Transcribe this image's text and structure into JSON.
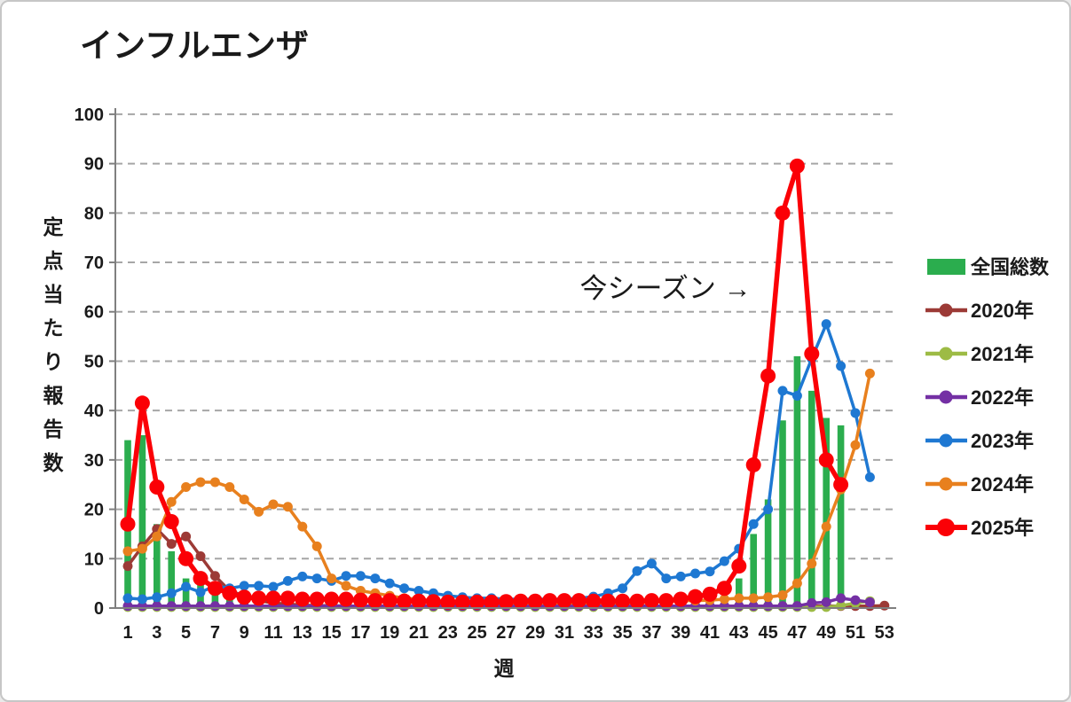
{
  "chart_data": {
    "type": "bar+line",
    "title": "インフルエンザ",
    "ylabel": "定点当たり報告数",
    "xlabel": "週",
    "annotation": "今シーズン →",
    "ylim": [
      0,
      100
    ],
    "y_ticks": [
      0,
      10,
      20,
      30,
      40,
      50,
      60,
      70,
      80,
      90,
      100
    ],
    "x_ticks": [
      1,
      3,
      5,
      7,
      9,
      11,
      13,
      15,
      17,
      19,
      21,
      23,
      25,
      27,
      29,
      31,
      33,
      35,
      37,
      39,
      41,
      43,
      45,
      47,
      49,
      51,
      53
    ],
    "weeks": 53,
    "grid": "horizontal dashed",
    "legend_position": "right",
    "colors": {
      "grid": "#a6a6a6",
      "axis": "#7f7f7f",
      "text": "#1a1a1a"
    },
    "bar_series": {
      "name": "全国総数",
      "color": "#2BAD4E",
      "values": [
        34,
        35,
        17,
        11.5,
        6,
        5,
        3.5,
        2.5,
        1.5,
        null,
        null,
        null,
        null,
        null,
        null,
        null,
        null,
        null,
        null,
        null,
        null,
        null,
        null,
        null,
        null,
        null,
        null,
        null,
        null,
        null,
        null,
        null,
        null,
        null,
        null,
        null,
        null,
        null,
        null,
        null,
        null,
        null,
        6,
        15,
        22,
        38,
        51,
        44,
        38.5,
        37,
        null,
        null,
        null
      ]
    },
    "line_series": [
      {
        "name": "2020年",
        "color": "#9C3A36",
        "emphasis": false,
        "values": [
          8.5,
          12.5,
          16,
          13,
          14.5,
          10.5,
          6.5,
          3.5,
          2.5,
          1.5,
          1,
          0.8,
          0.6,
          0.5,
          0.5,
          0.4,
          0.4,
          0.4,
          0.4,
          0.4,
          0.4,
          0.4,
          0.4,
          0.4,
          0.4,
          0.4,
          0.4,
          0.4,
          0.4,
          0.4,
          0.4,
          0.4,
          0.4,
          0.4,
          0.4,
          0.4,
          0.4,
          0.4,
          0.4,
          0.4,
          0.4,
          0.4,
          0.4,
          0.4,
          0.4,
          0.4,
          0.4,
          0.4,
          0.4,
          0.4,
          0.4,
          0.4,
          0.5
        ]
      },
      {
        "name": "2021年",
        "color": "#9DBB45",
        "emphasis": false,
        "values": [
          0.2,
          0.2,
          0.2,
          0.2,
          0.2,
          0.2,
          0.2,
          0.2,
          0.2,
          0.2,
          0.2,
          0.2,
          0.2,
          0.2,
          0.2,
          0.2,
          0.2,
          0.2,
          0.2,
          0.2,
          0.2,
          0.2,
          0.2,
          0.2,
          0.2,
          0.2,
          0.2,
          0.2,
          0.2,
          0.2,
          0.2,
          0.2,
          0.2,
          0.2,
          0.2,
          0.2,
          0.2,
          0.2,
          0.2,
          0.2,
          0.2,
          0.2,
          0.2,
          0.2,
          0.2,
          0.2,
          0.2,
          0.2,
          0.2,
          0.5,
          1,
          1.4,
          null
        ]
      },
      {
        "name": "2022年",
        "color": "#7430A4",
        "emphasis": false,
        "values": [
          0.4,
          0.4,
          0.4,
          0.4,
          0.4,
          0.4,
          0.4,
          0.4,
          0.4,
          0.4,
          0.4,
          0.4,
          0.4,
          0.4,
          0.4,
          0.4,
          0.4,
          0.4,
          0.4,
          0.4,
          0.4,
          0.4,
          0.4,
          0.4,
          0.4,
          0.4,
          0.4,
          0.4,
          0.4,
          0.4,
          0.4,
          0.4,
          0.4,
          0.4,
          0.4,
          0.4,
          0.4,
          0.4,
          0.4,
          0.4,
          0.4,
          0.4,
          0.4,
          0.4,
          0.4,
          0.4,
          0.4,
          1,
          1.2,
          2,
          1.6,
          1.2,
          null
        ]
      },
      {
        "name": "2023年",
        "color": "#1E78D2",
        "emphasis": false,
        "values": [
          2,
          1.8,
          2.2,
          3,
          4.3,
          3.2,
          4.5,
          4,
          4.5,
          4.5,
          4.3,
          5.5,
          6.4,
          6,
          5.5,
          6.5,
          6.5,
          6,
          5,
          4,
          3.5,
          3,
          2.5,
          2.2,
          2,
          2,
          1.8,
          1.8,
          1.8,
          1.8,
          1.8,
          2,
          2.3,
          3,
          4,
          7.5,
          9,
          6,
          6.4,
          7,
          7.4,
          9.5,
          12,
          17,
          20,
          44,
          43,
          50.5,
          57.5,
          49,
          39.5,
          26.5,
          null
        ]
      },
      {
        "name": "2024年",
        "color": "#E8801E",
        "emphasis": false,
        "values": [
          11.5,
          12,
          14.5,
          21.5,
          24.5,
          25.5,
          25.5,
          24.5,
          22,
          19.5,
          21,
          20.5,
          16.5,
          12.5,
          6,
          4.5,
          3.5,
          3,
          2.5,
          2,
          1.8,
          1.5,
          1.2,
          1,
          1,
          1,
          1,
          1,
          1,
          1,
          1,
          1,
          1,
          1,
          1,
          1,
          1.2,
          1.3,
          1.5,
          1.5,
          1.6,
          1.8,
          2,
          2,
          2.2,
          2.6,
          5,
          9,
          16.5,
          24,
          33,
          47.5,
          null
        ]
      },
      {
        "name": "2025年",
        "color": "#FB0006",
        "emphasis": true,
        "values": [
          17,
          41.5,
          24.5,
          17.5,
          10,
          6,
          4,
          3,
          2.2,
          2,
          2,
          2,
          1.8,
          1.8,
          1.8,
          1.8,
          1.6,
          1.5,
          1.5,
          1.4,
          1.4,
          1.3,
          1.2,
          1.2,
          1.2,
          1.2,
          1.3,
          1.4,
          1.4,
          1.5,
          1.5,
          1.5,
          1.4,
          1.4,
          1.4,
          1.4,
          1.5,
          1.5,
          1.8,
          2.3,
          2.8,
          4,
          8.5,
          29,
          47,
          80,
          89.5,
          51.5,
          30,
          25,
          null,
          null,
          null
        ]
      }
    ]
  }
}
